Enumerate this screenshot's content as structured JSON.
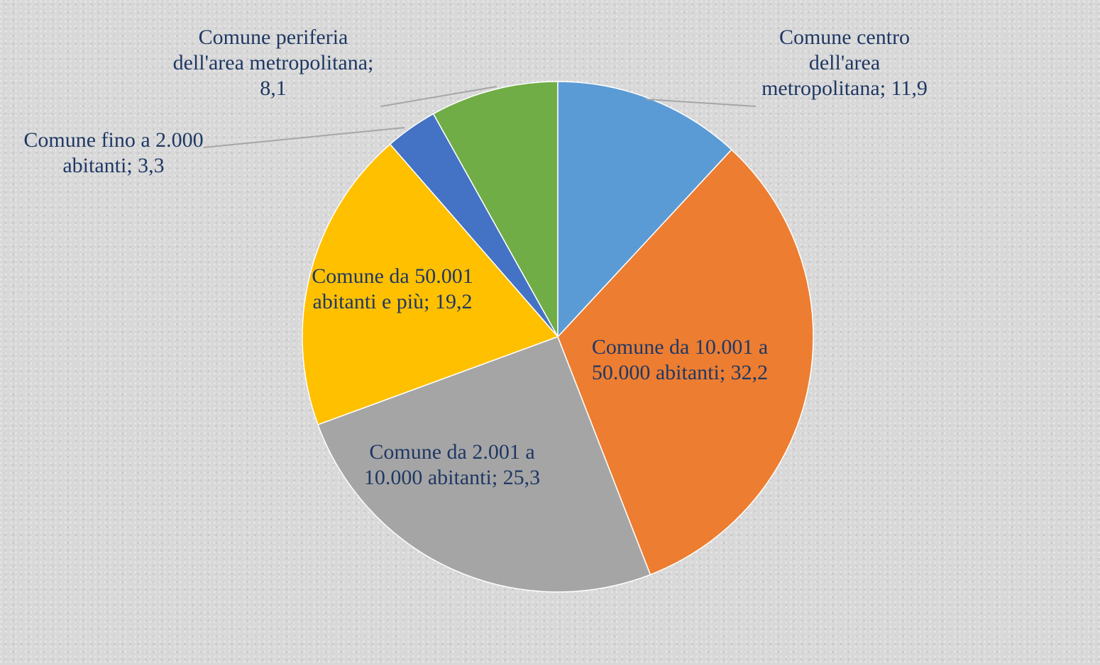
{
  "chart_data": {
    "type": "pie",
    "categories": [
      "Comune centro dell'area metropolitana",
      "Comune da 10.001 a 50.000 abitanti",
      "Comune da 2.001 a 10.000 abitanti",
      "Comune da 50.001 abitanti e più",
      "Comune fino a 2.000 abitanti",
      "Comune periferia dell'area metropolitana"
    ],
    "values": [
      11.9,
      32.2,
      25.3,
      19.2,
      3.3,
      8.1
    ],
    "value_labels": [
      "11,9",
      "32,2",
      "25,3",
      "19,2",
      "3,3",
      "8,1"
    ],
    "separator": "; ",
    "colors": [
      "#5b9bd5",
      "#ed7d31",
      "#a5a5a5",
      "#ffc000",
      "#4472c4",
      "#70ad47"
    ]
  }
}
